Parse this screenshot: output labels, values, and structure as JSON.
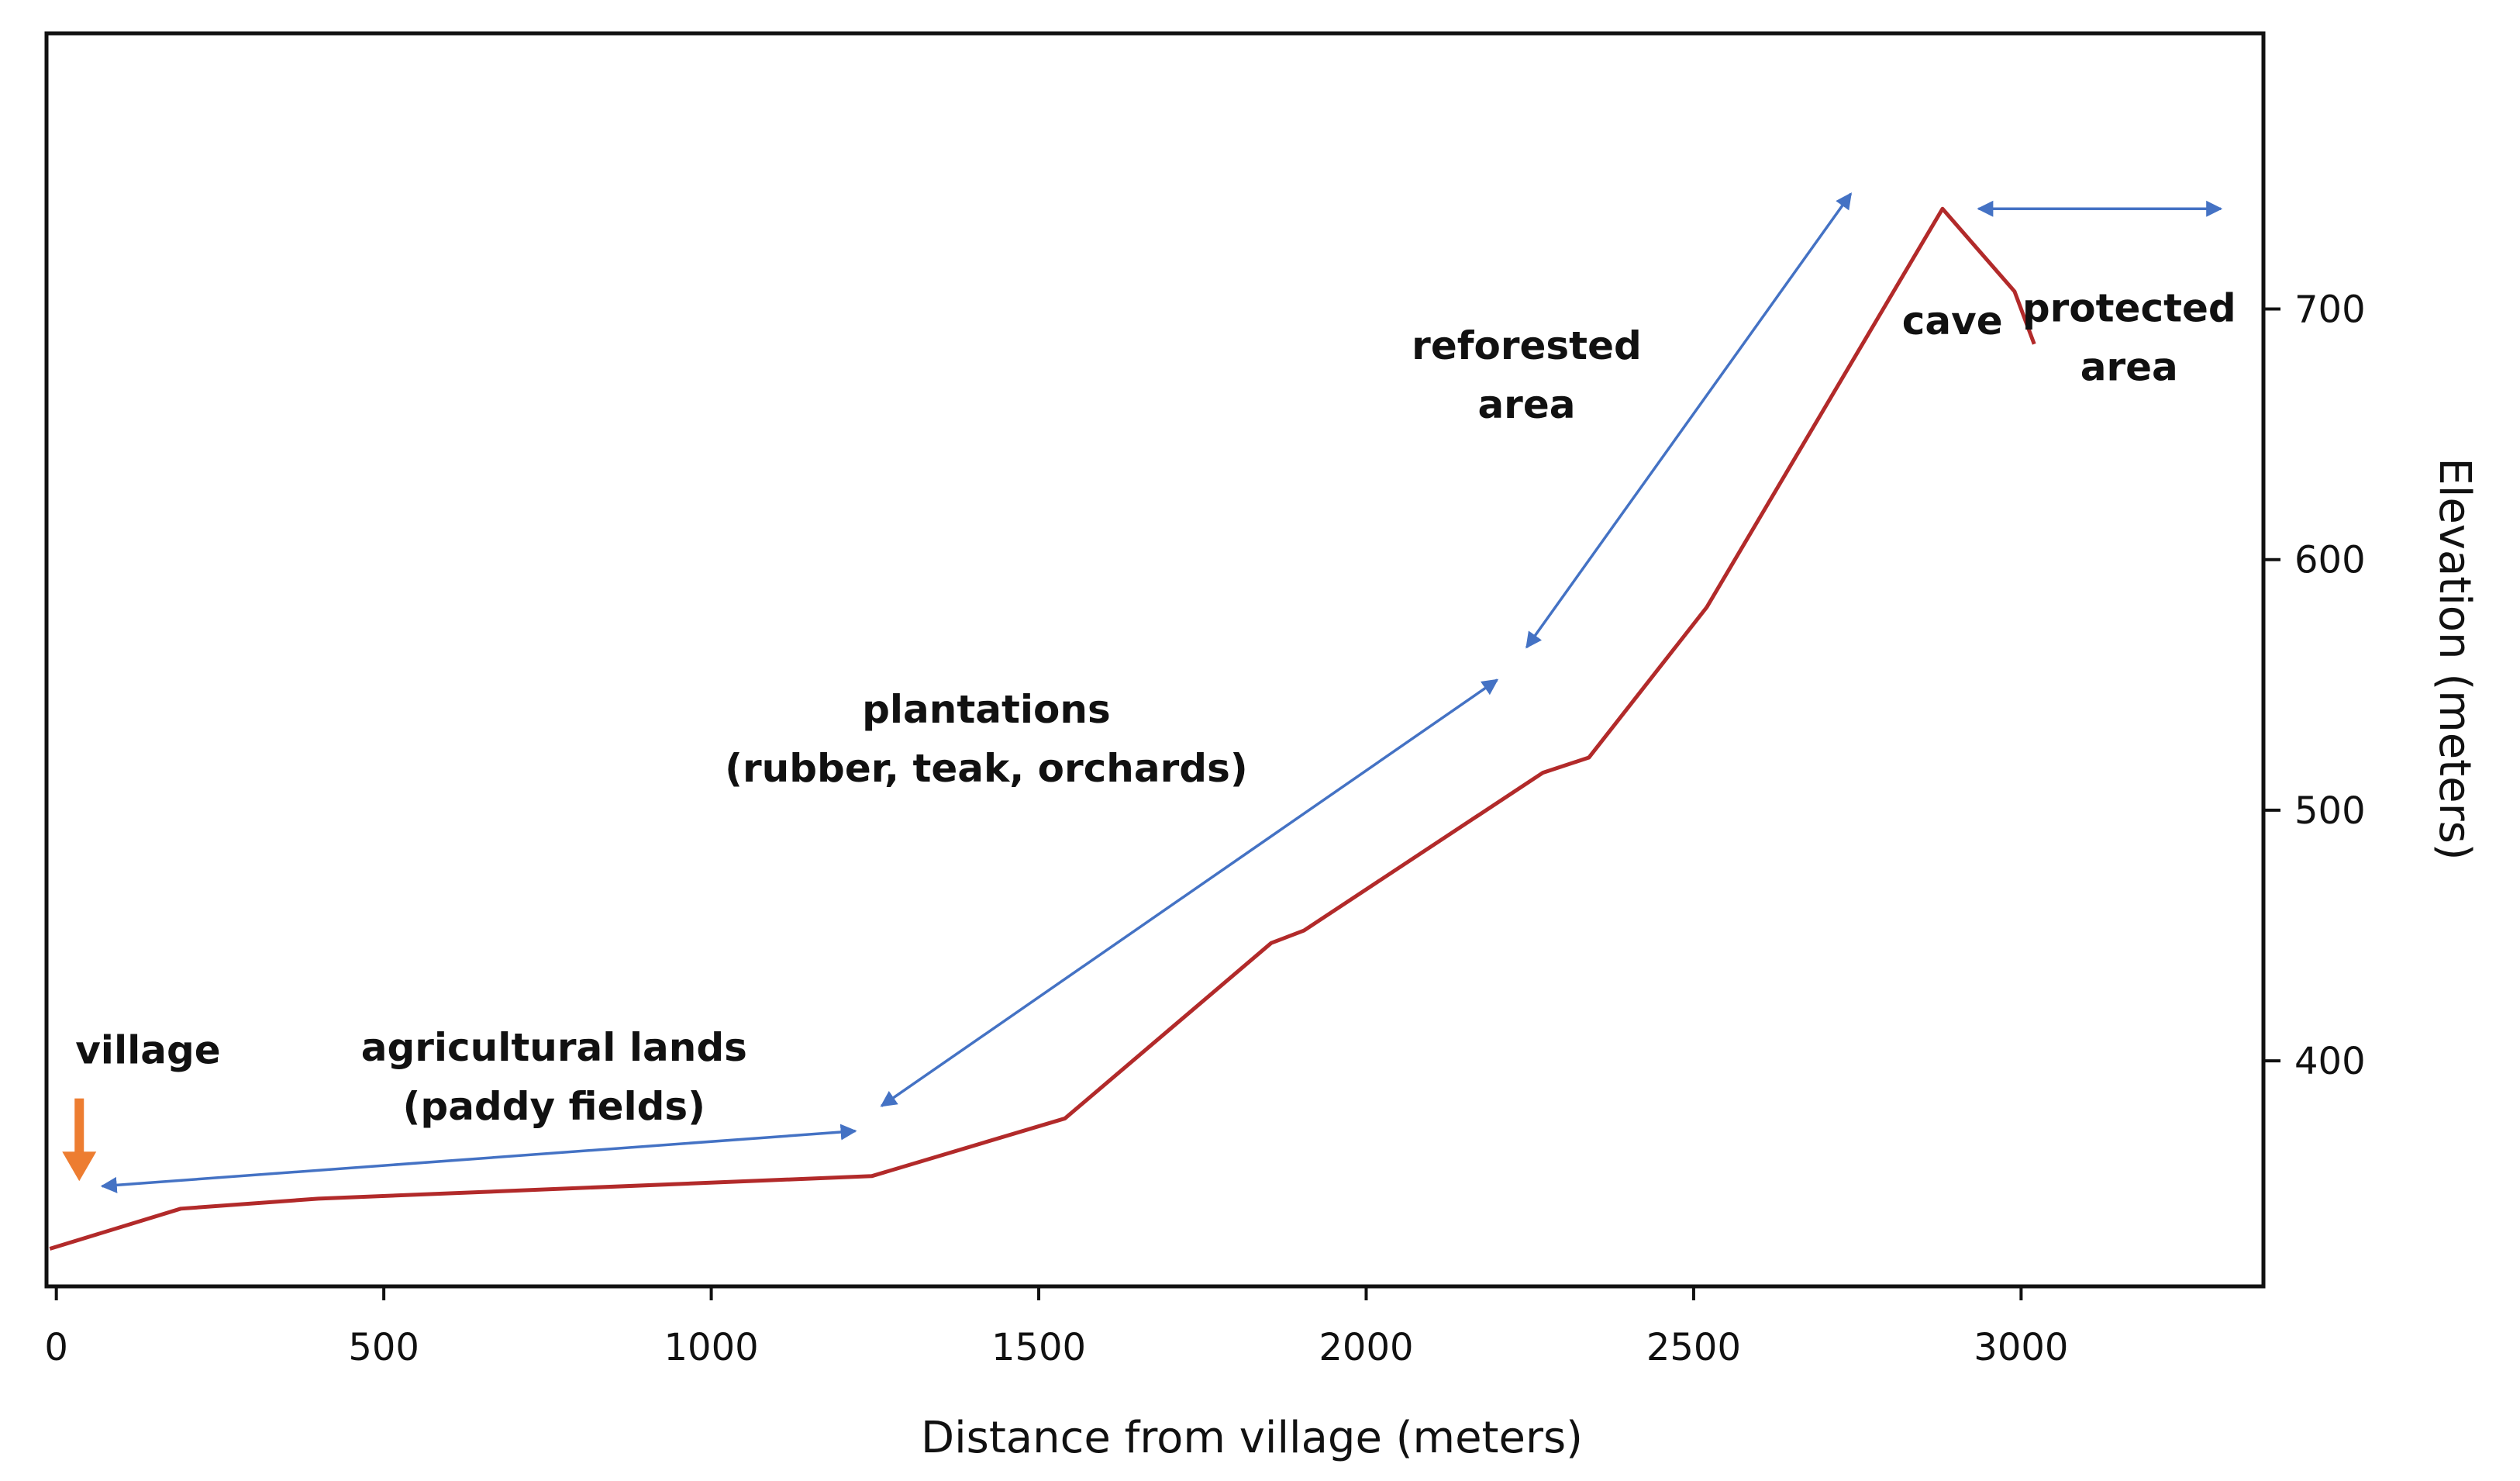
{
  "chart_data": {
    "type": "line",
    "title": "",
    "xlabel": "Distance from village (meters)",
    "ylabel": "Elevation (meters)",
    "xlim": [
      -15,
      3370
    ],
    "ylim": [
      310,
      810
    ],
    "xticks": [
      0,
      500,
      1000,
      1500,
      2000,
      2500,
      3000
    ],
    "yticks": [
      400,
      500,
      600,
      700
    ],
    "y_axis_side": "right",
    "grid": false,
    "colors": {
      "line": "#b22a2a",
      "arrow": "#4472c4",
      "village_marker": "#ed7d31"
    },
    "series": [
      {
        "name": "elevation profile",
        "x": [
          -10,
          190,
          400,
          1245,
          1540,
          1855,
          1905,
          2270,
          2340,
          2520,
          2880,
          2990,
          3020
        ],
        "y": [
          325,
          341,
          345,
          354,
          377,
          447,
          452,
          515,
          521,
          581,
          740,
          707,
          686
        ]
      }
    ],
    "annotations": [
      {
        "id": "village",
        "lines": [
          "village"
        ],
        "x": 140,
        "y": 399
      },
      {
        "id": "agricultural",
        "lines": [
          "agricultural lands",
          "(paddy fields)"
        ],
        "x": 760,
        "y": 400
      },
      {
        "id": "plantations",
        "lines": [
          "plantations",
          "(rubber, teak, orchards)"
        ],
        "x": 1420,
        "y": 535
      },
      {
        "id": "reforested",
        "lines": [
          "reforested",
          "area"
        ],
        "x": 2245,
        "y": 680
      },
      {
        "id": "cave",
        "lines": [
          "cave"
        ],
        "x": 2895,
        "y": 690
      },
      {
        "id": "protected",
        "lines": [
          "protected",
          "area"
        ],
        "x": 3165,
        "y": 695
      }
    ],
    "range_arrows": [
      {
        "id": "agricultural-range",
        "from": [
          70,
          350
        ],
        "to": [
          1220,
          372
        ]
      },
      {
        "id": "plantations-range",
        "from": [
          1260,
          382
        ],
        "to": [
          2200,
          552
        ]
      },
      {
        "id": "reforested-range",
        "from": [
          2245,
          565
        ],
        "to": [
          2740,
          746
        ]
      },
      {
        "id": "protected-range",
        "from": [
          2935,
          740
        ],
        "to": [
          3305,
          740
        ]
      }
    ],
    "village_marker": {
      "x": 35,
      "y_top": 385,
      "y_tip": 352
    }
  }
}
